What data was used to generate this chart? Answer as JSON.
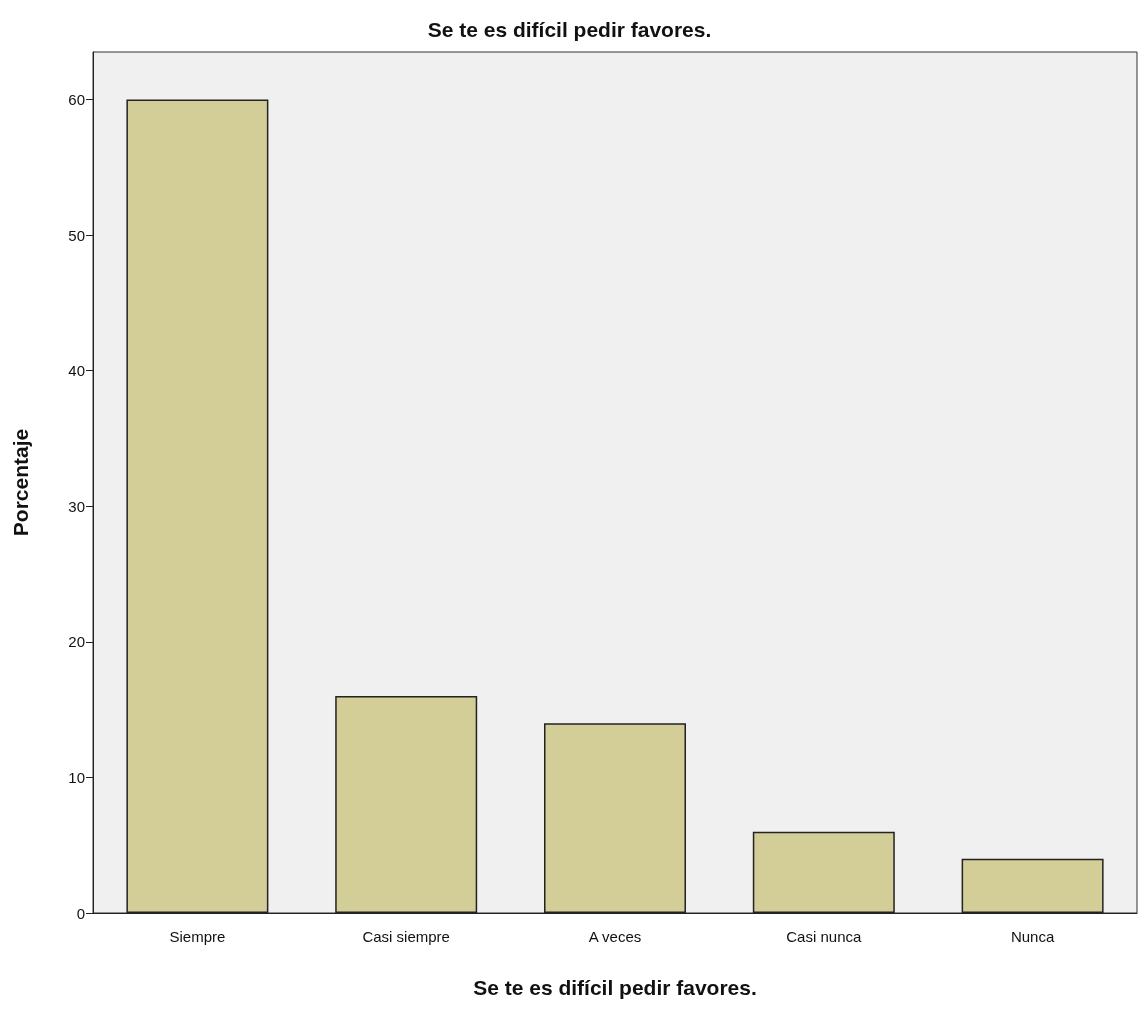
{
  "chart_data": {
    "type": "bar",
    "title": "Se te es difícil pedir favores.",
    "xlabel": "Se te es difícil pedir favores.",
    "ylabel": "Porcentaje",
    "categories": [
      "Siempre",
      "Casi siempre",
      "A veces",
      "Casi nunca",
      "Nunca"
    ],
    "values": [
      60,
      16,
      14,
      6,
      4
    ],
    "color": "#d3ce97",
    "ylim": [
      0,
      63.5
    ],
    "yticks": [
      0,
      10,
      20,
      30,
      40,
      50,
      60
    ]
  }
}
